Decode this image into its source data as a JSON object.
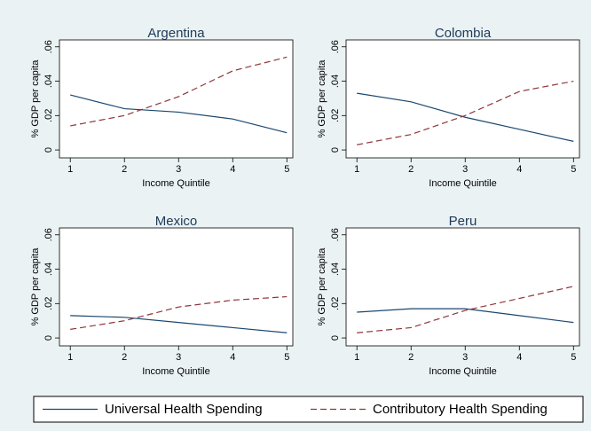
{
  "chart_data": [
    {
      "type": "line",
      "title": "Argentina",
      "xlabel": "Income Quintile",
      "ylabel": "% GDP per capita",
      "x": [
        1,
        2,
        3,
        4,
        5
      ],
      "xlim": [
        0.8,
        5.11
      ],
      "xticks": [
        1,
        2,
        3,
        4,
        5
      ],
      "ylim": [
        -0.0046,
        0.064
      ],
      "yticks": [
        0,
        {
          "value": 0.02,
          "label": ".02"
        },
        {
          "value": 0.04,
          "label": ".04"
        },
        {
          "value": 0.06,
          "label": ".06"
        }
      ],
      "series": [
        {
          "color": "#1a476f",
          "dashed": false,
          "values": [
            0.032,
            0.024,
            0.022,
            0.018,
            0.01
          ]
        },
        {
          "color": "#90353b",
          "dashed": true,
          "values": [
            0.014,
            0.02,
            0.031,
            0.046,
            0.054
          ]
        }
      ]
    },
    {
      "type": "line",
      "title": "Colombia",
      "xlabel": "Income Quintile",
      "ylabel": "% GDP per capita",
      "x": [
        1,
        2,
        3,
        4,
        5
      ],
      "xlim": [
        0.8,
        5.11
      ],
      "xticks": [
        1,
        2,
        3,
        4,
        5
      ],
      "ylim": [
        -0.0046,
        0.064
      ],
      "yticks": [
        0,
        {
          "value": 0.02,
          "label": ".02"
        },
        {
          "value": 0.04,
          "label": ".04"
        },
        {
          "value": 0.06,
          "label": ".06"
        }
      ],
      "series": [
        {
          "color": "#1a476f",
          "dashed": false,
          "values": [
            0.033,
            0.028,
            0.019,
            0.012,
            0.005
          ]
        },
        {
          "color": "#90353b",
          "dashed": true,
          "values": [
            0.003,
            0.009,
            0.02,
            0.034,
            0.04
          ]
        }
      ]
    },
    {
      "type": "line",
      "title": "Mexico",
      "xlabel": "Income Quintile",
      "ylabel": "% GDP per capita",
      "x": [
        1,
        2,
        3,
        4,
        5
      ],
      "xlim": [
        0.8,
        5.11
      ],
      "xticks": [
        1,
        2,
        3,
        4,
        5
      ],
      "ylim": [
        -0.0046,
        0.064
      ],
      "yticks": [
        0,
        {
          "value": 0.02,
          "label": ".02"
        },
        {
          "value": 0.04,
          "label": ".04"
        },
        {
          "value": 0.06,
          "label": ".06"
        }
      ],
      "series": [
        {
          "color": "#1a476f",
          "dashed": false,
          "values": [
            0.013,
            0.012,
            0.009,
            0.006,
            0.003
          ]
        },
        {
          "color": "#90353b",
          "dashed": true,
          "values": [
            0.005,
            0.01,
            0.018,
            0.022,
            0.024
          ]
        }
      ]
    },
    {
      "type": "line",
      "title": "Peru",
      "xlabel": "Income Quintile",
      "ylabel": "% GDP per capita",
      "x": [
        1,
        2,
        3,
        4,
        5
      ],
      "xlim": [
        0.8,
        5.11
      ],
      "xticks": [
        1,
        2,
        3,
        4,
        5
      ],
      "ylim": [
        -0.0046,
        0.064
      ],
      "yticks": [
        0,
        {
          "value": 0.02,
          "label": ".02"
        },
        {
          "value": 0.04,
          "label": ".04"
        },
        {
          "value": 0.06,
          "label": ".06"
        }
      ],
      "series": [
        {
          "color": "#1a476f",
          "dashed": false,
          "values": [
            0.015,
            0.017,
            0.017,
            0.013,
            0.009
          ]
        },
        {
          "color": "#90353b",
          "dashed": true,
          "values": [
            0.003,
            0.006,
            0.016,
            0.023,
            0.03
          ]
        }
      ]
    }
  ],
  "legend": [
    {
      "name": "Universal Health Spending",
      "color": "#1a476f",
      "dashed": false
    },
    {
      "name": "Contributory Health Spending",
      "color": "#90353b",
      "dashed": true
    }
  ]
}
